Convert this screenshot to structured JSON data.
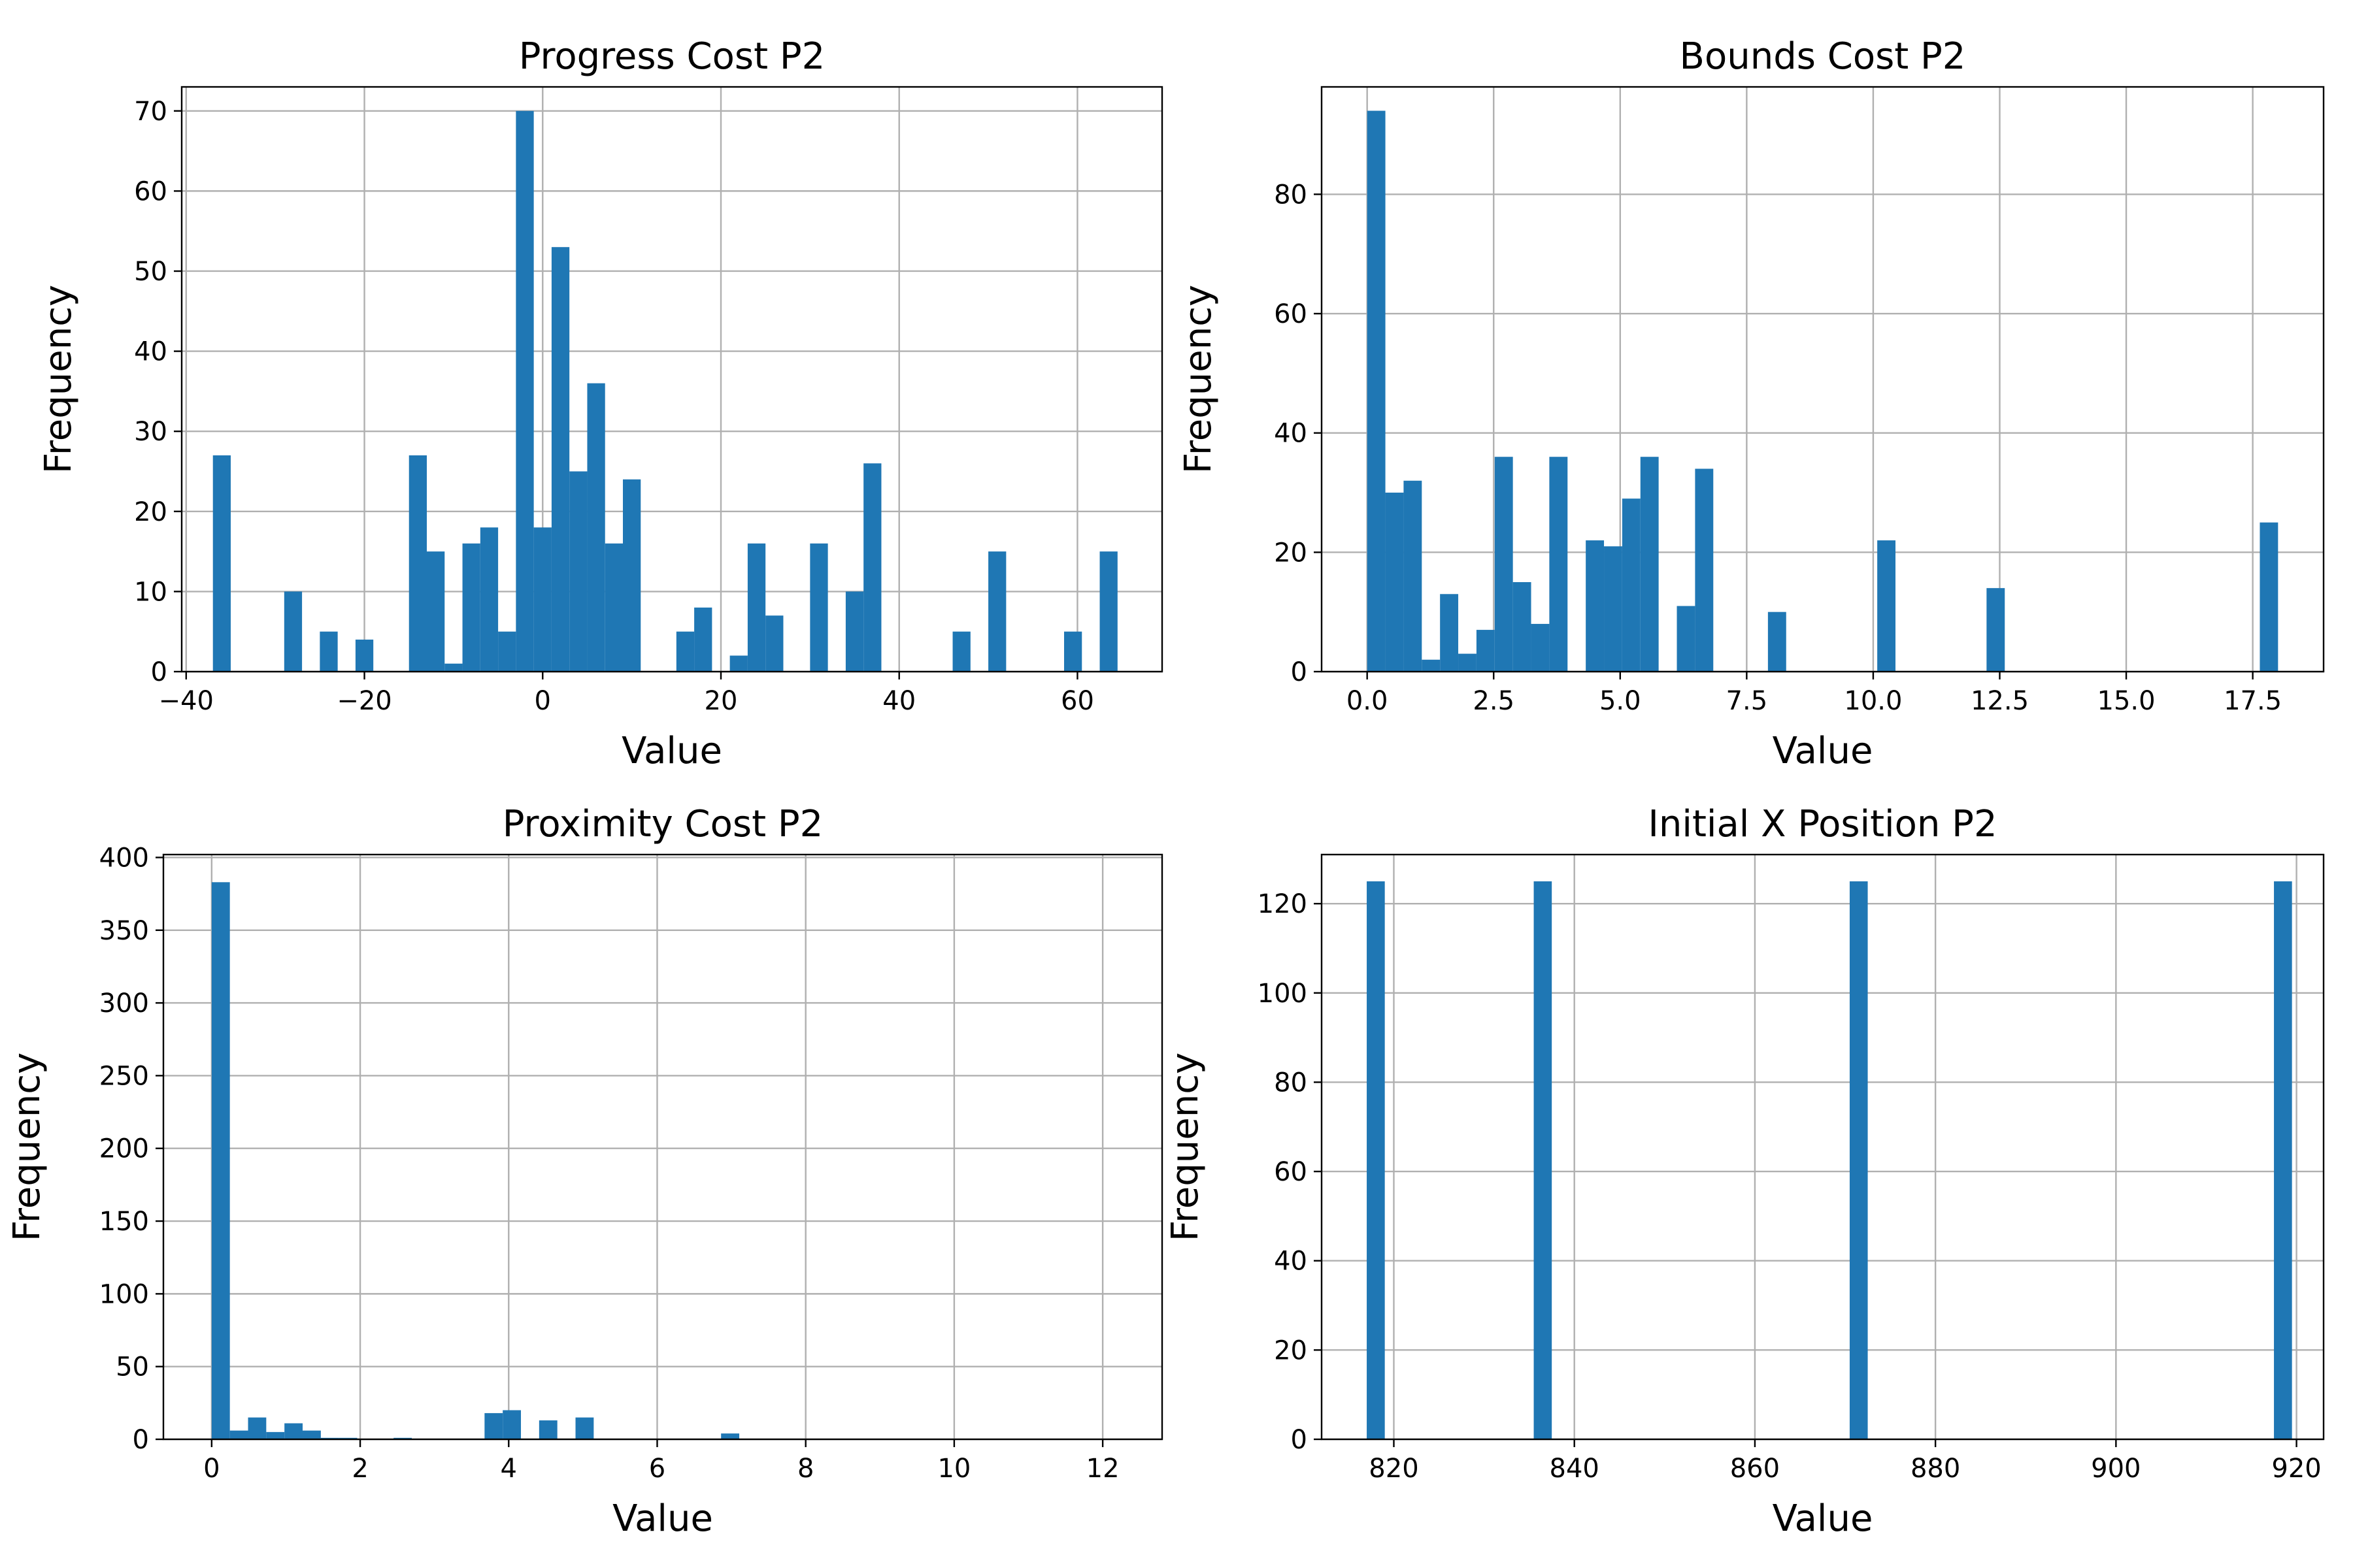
{
  "chart_data": [
    {
      "type": "bar",
      "title": "Progress Cost P2",
      "xlabel": "Value",
      "ylabel": "Frequency",
      "xlim": [
        -40.5,
        69.5
      ],
      "ylim": [
        0,
        73
      ],
      "xticks": [
        -40,
        -20,
        0,
        20,
        40,
        60
      ],
      "xtick_labels": [
        "−40",
        "−20",
        "0",
        "20",
        "40",
        "60"
      ],
      "yticks": [
        0,
        10,
        20,
        30,
        40,
        50,
        60,
        70
      ],
      "ytick_labels": [
        "0",
        "10",
        "20",
        "30",
        "40",
        "50",
        "60",
        "70"
      ],
      "grid": true,
      "bins": [
        {
          "x0": -37.0,
          "x1": -35.0,
          "count": 27
        },
        {
          "x0": -29.0,
          "x1": -27.0,
          "count": 10
        },
        {
          "x0": -25.0,
          "x1": -23.0,
          "count": 5
        },
        {
          "x0": -21.0,
          "x1": -19.0,
          "count": 4
        },
        {
          "x0": -15.0,
          "x1": -13.0,
          "count": 27
        },
        {
          "x0": -13.0,
          "x1": -11.0,
          "count": 15
        },
        {
          "x0": -11.0,
          "x1": -9.0,
          "count": 1
        },
        {
          "x0": -9.0,
          "x1": -7.0,
          "count": 16
        },
        {
          "x0": -7.0,
          "x1": -5.0,
          "count": 18
        },
        {
          "x0": -5.0,
          "x1": -3.0,
          "count": 5
        },
        {
          "x0": -3.0,
          "x1": -1.0,
          "count": 70
        },
        {
          "x0": -1.0,
          "x1": 1.0,
          "count": 18
        },
        {
          "x0": 1.0,
          "x1": 3.0,
          "count": 53
        },
        {
          "x0": 3.0,
          "x1": 5.0,
          "count": 25
        },
        {
          "x0": 5.0,
          "x1": 7.0,
          "count": 36
        },
        {
          "x0": 7.0,
          "x1": 9.0,
          "count": 16
        },
        {
          "x0": 9.0,
          "x1": 11.0,
          "count": 24
        },
        {
          "x0": 15.0,
          "x1": 17.0,
          "count": 5
        },
        {
          "x0": 17.0,
          "x1": 19.0,
          "count": 8
        },
        {
          "x0": 21.0,
          "x1": 23.0,
          "count": 2
        },
        {
          "x0": 23.0,
          "x1": 25.0,
          "count": 16
        },
        {
          "x0": 25.0,
          "x1": 27.0,
          "count": 7
        },
        {
          "x0": 30.0,
          "x1": 32.0,
          "count": 16
        },
        {
          "x0": 34.0,
          "x1": 36.0,
          "count": 10
        },
        {
          "x0": 36.0,
          "x1": 38.0,
          "count": 26
        },
        {
          "x0": 46.0,
          "x1": 48.0,
          "count": 5
        },
        {
          "x0": 50.0,
          "x1": 52.0,
          "count": 15
        },
        {
          "x0": 58.5,
          "x1": 60.5,
          "count": 5
        },
        {
          "x0": 62.5,
          "x1": 64.5,
          "count": 15
        }
      ]
    },
    {
      "type": "bar",
      "title": "Bounds Cost P2",
      "xlabel": "Value",
      "ylabel": "Frequency",
      "xlim": [
        -0.9,
        18.9
      ],
      "ylim": [
        0,
        98
      ],
      "xticks": [
        0.0,
        2.5,
        5.0,
        7.5,
        10.0,
        12.5,
        15.0,
        17.5
      ],
      "xtick_labels": [
        "0.0",
        "2.5",
        "5.0",
        "7.5",
        "10.0",
        "12.5",
        "15.0",
        "17.5"
      ],
      "yticks": [
        0,
        20,
        40,
        60,
        80
      ],
      "ytick_labels": [
        "0",
        "20",
        "40",
        "60",
        "80"
      ],
      "grid": true,
      "bins": [
        {
          "x0": 0.0,
          "x1": 0.36,
          "count": 94
        },
        {
          "x0": 0.36,
          "x1": 0.72,
          "count": 30
        },
        {
          "x0": 0.72,
          "x1": 1.08,
          "count": 32
        },
        {
          "x0": 1.08,
          "x1": 1.44,
          "count": 2
        },
        {
          "x0": 1.44,
          "x1": 1.8,
          "count": 13
        },
        {
          "x0": 1.8,
          "x1": 2.16,
          "count": 3
        },
        {
          "x0": 2.16,
          "x1": 2.52,
          "count": 7
        },
        {
          "x0": 2.52,
          "x1": 2.88,
          "count": 36
        },
        {
          "x0": 2.88,
          "x1": 3.24,
          "count": 15
        },
        {
          "x0": 3.24,
          "x1": 3.6,
          "count": 8
        },
        {
          "x0": 3.6,
          "x1": 3.96,
          "count": 36
        },
        {
          "x0": 4.32,
          "x1": 4.68,
          "count": 22
        },
        {
          "x0": 4.68,
          "x1": 5.04,
          "count": 21
        },
        {
          "x0": 5.04,
          "x1": 5.4,
          "count": 29
        },
        {
          "x0": 5.4,
          "x1": 5.76,
          "count": 36
        },
        {
          "x0": 6.12,
          "x1": 6.48,
          "count": 11
        },
        {
          "x0": 6.48,
          "x1": 6.84,
          "count": 34
        },
        {
          "x0": 7.92,
          "x1": 8.28,
          "count": 10
        },
        {
          "x0": 10.08,
          "x1": 10.44,
          "count": 22
        },
        {
          "x0": 12.24,
          "x1": 12.6,
          "count": 14
        },
        {
          "x0": 17.64,
          "x1": 18.0,
          "count": 25
        }
      ]
    },
    {
      "type": "bar",
      "title": "Proximity Cost P2",
      "xlabel": "Value",
      "ylabel": "Frequency",
      "xlim": [
        -0.65,
        12.8
      ],
      "ylim": [
        0,
        402
      ],
      "xticks": [
        0,
        2,
        4,
        6,
        8,
        10,
        12
      ],
      "xtick_labels": [
        "0",
        "2",
        "4",
        "6",
        "8",
        "10",
        "12"
      ],
      "yticks": [
        0,
        50,
        100,
        150,
        200,
        250,
        300,
        350,
        400
      ],
      "ytick_labels": [
        "0",
        "50",
        "100",
        "150",
        "200",
        "250",
        "300",
        "350",
        "400"
      ],
      "grid": true,
      "bins": [
        {
          "x0": 0.0,
          "x1": 0.245,
          "count": 383
        },
        {
          "x0": 0.245,
          "x1": 0.49,
          "count": 6
        },
        {
          "x0": 0.49,
          "x1": 0.735,
          "count": 15
        },
        {
          "x0": 0.735,
          "x1": 0.98,
          "count": 5
        },
        {
          "x0": 0.98,
          "x1": 1.225,
          "count": 11
        },
        {
          "x0": 1.225,
          "x1": 1.47,
          "count": 6
        },
        {
          "x0": 1.47,
          "x1": 1.715,
          "count": 1
        },
        {
          "x0": 1.715,
          "x1": 1.96,
          "count": 1
        },
        {
          "x0": 2.45,
          "x1": 2.695,
          "count": 1
        },
        {
          "x0": 3.675,
          "x1": 3.92,
          "count": 18
        },
        {
          "x0": 3.92,
          "x1": 4.165,
          "count": 20
        },
        {
          "x0": 4.41,
          "x1": 4.655,
          "count": 13
        },
        {
          "x0": 4.9,
          "x1": 5.145,
          "count": 15
        },
        {
          "x0": 6.86,
          "x1": 7.105,
          "count": 4
        }
      ]
    },
    {
      "type": "bar",
      "title": "Initial X Position P2",
      "xlabel": "Value",
      "ylabel": "Frequency",
      "xlim": [
        812.0,
        923.0
      ],
      "ylim": [
        0,
        131
      ],
      "xticks": [
        820,
        840,
        860,
        880,
        900,
        920
      ],
      "xtick_labels": [
        "820",
        "840",
        "860",
        "880",
        "900",
        "920"
      ],
      "yticks": [
        0,
        20,
        40,
        60,
        80,
        100,
        120
      ],
      "ytick_labels": [
        "0",
        "20",
        "40",
        "60",
        "80",
        "100",
        "120"
      ],
      "grid": true,
      "bins": [
        {
          "x0": 817.0,
          "x1": 819.0,
          "count": 125
        },
        {
          "x0": 835.5,
          "x1": 837.5,
          "count": 125
        },
        {
          "x0": 870.5,
          "x1": 872.5,
          "count": 125
        },
        {
          "x0": 917.5,
          "x1": 919.5,
          "count": 125
        }
      ]
    }
  ]
}
